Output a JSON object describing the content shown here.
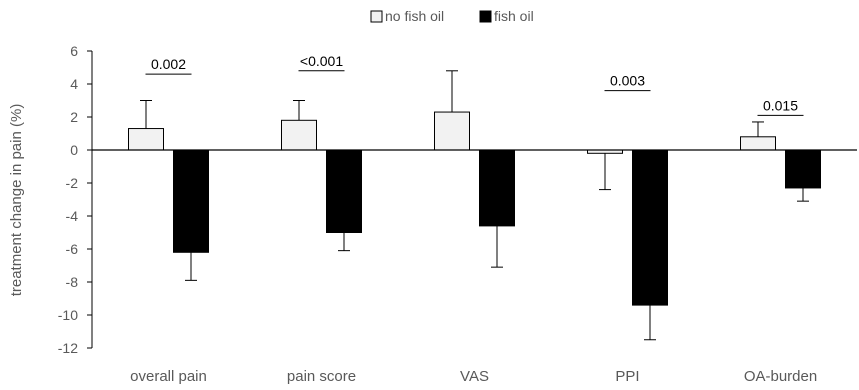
{
  "chart_data": {
    "type": "bar",
    "title": "",
    "xlabel": "",
    "ylabel": "treatment change in pain (%)",
    "ylim": [
      -12,
      6
    ],
    "yticks": [
      6,
      4,
      2,
      0,
      -2,
      -4,
      -6,
      -8,
      -10,
      -12
    ],
    "grid": false,
    "legend_position": "top",
    "categories": [
      "overall pain",
      "pain score",
      "VAS",
      "PPI",
      "OA-burden"
    ],
    "series": [
      {
        "name": "no fish oil",
        "color": "#f2f2f2",
        "values": [
          1.3,
          1.8,
          2.3,
          -0.2,
          0.8
        ],
        "errors": [
          1.7,
          1.2,
          2.5,
          2.2,
          0.9
        ]
      },
      {
        "name": "fish oil",
        "color": "#000000",
        "values": [
          -6.2,
          -5.0,
          -4.6,
          -9.4,
          -2.3
        ],
        "errors": [
          1.7,
          1.1,
          2.5,
          2.1,
          0.8
        ]
      }
    ],
    "annotations": [
      {
        "category": "overall pain",
        "text": "0.002",
        "y": 4.6
      },
      {
        "category": "pain score",
        "text": "<0.001",
        "y": 4.8
      },
      {
        "category": "PPI",
        "text": "0.003",
        "y": 3.6
      },
      {
        "category": "OA-burden",
        "text": "0.015",
        "y": 2.1
      }
    ]
  }
}
